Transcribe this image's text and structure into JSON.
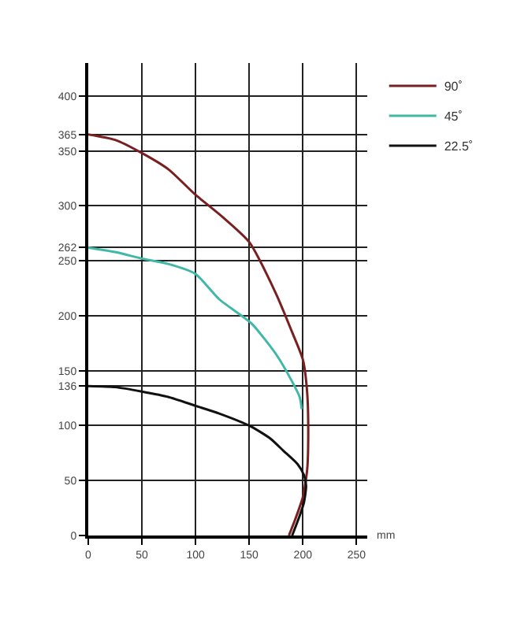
{
  "chart_data": {
    "type": "line",
    "xlabel": "mm",
    "xlim": [
      0,
      260
    ],
    "ylim": [
      0,
      430
    ],
    "xticks": [
      0,
      50,
      100,
      150,
      200,
      250
    ],
    "yticks": [
      0,
      50,
      100,
      136,
      150,
      200,
      250,
      262,
      300,
      350,
      365,
      400
    ],
    "grid": true,
    "legend": "top right",
    "marker": "none",
    "line_style": "solid",
    "series": [
      {
        "name": "90˚",
        "color": "#7a1f1f",
        "x": [
          0,
          25,
          50,
          75,
          100,
          125,
          150,
          175,
          190,
          200,
          204,
          205,
          204,
          200,
          193,
          187
        ],
        "values": [
          365,
          360,
          348,
          333,
          310,
          290,
          267,
          220,
          185,
          160,
          130,
          90,
          60,
          35,
          15,
          0
        ]
      },
      {
        "name": "45˚",
        "color": "#3fb8a8",
        "x": [
          0,
          25,
          50,
          75,
          100,
          122,
          152,
          175,
          190,
          197,
          199
        ],
        "values": [
          262,
          258,
          252,
          247,
          238,
          215,
          193,
          165,
          140,
          126,
          115
        ]
      },
      {
        "name": "22.5˚",
        "color": "#111111",
        "x": [
          0,
          25,
          50,
          75,
          100,
          122,
          152,
          170,
          182,
          195,
          201,
          203,
          201,
          197,
          190
        ],
        "values": [
          136,
          135,
          131,
          126,
          118,
          111,
          99,
          88,
          77,
          65,
          55,
          45,
          30,
          18,
          0
        ]
      }
    ]
  }
}
